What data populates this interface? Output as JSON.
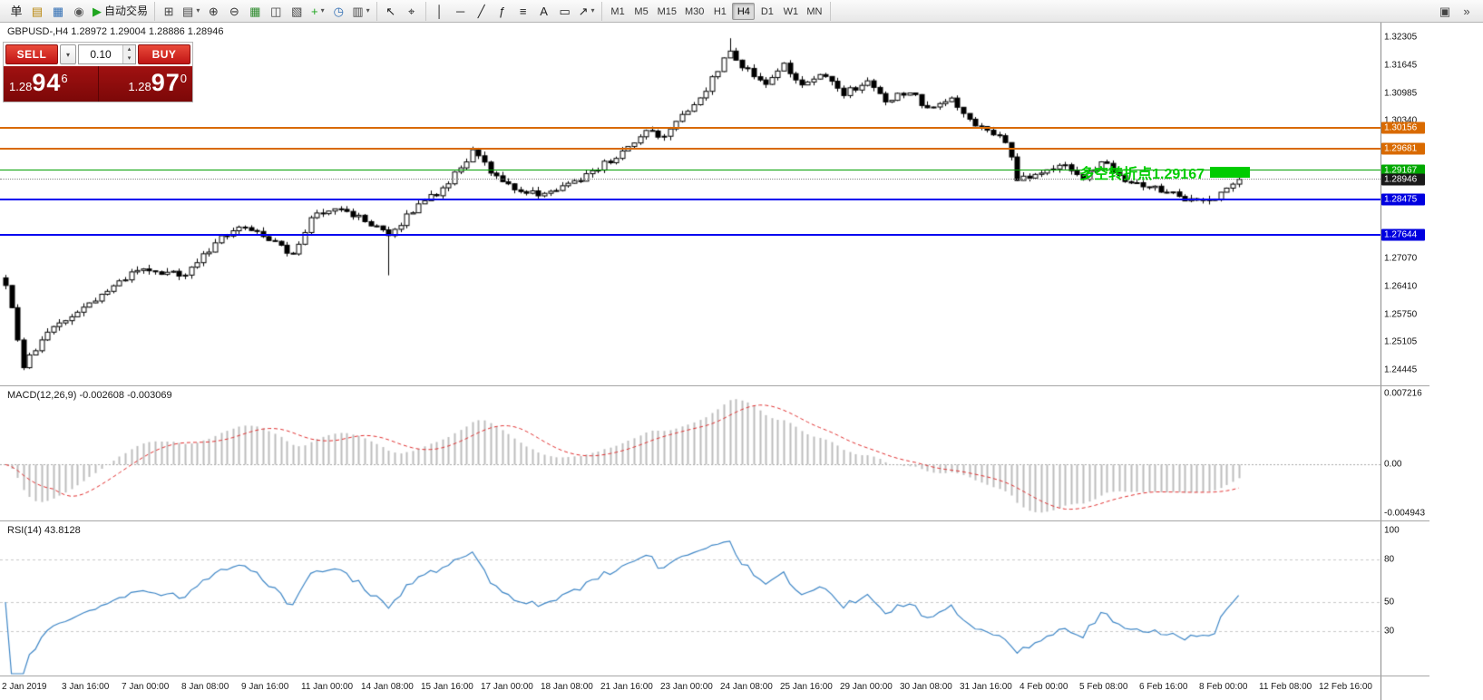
{
  "glyphs": {
    "caret_down": "▾",
    "spin_up": "▴",
    "spin_down": "▾"
  },
  "toolbar": {
    "groups": [
      {
        "name": "trade-group",
        "items": [
          {
            "name": "new-order-button",
            "glyph": "单",
            "color": "#1a1a1a"
          },
          {
            "name": "profiles-icon",
            "glyph": "▤",
            "color": "#B8860B"
          },
          {
            "name": "market-watch-icon",
            "glyph": "▦",
            "color": "#2F6DB3"
          },
          {
            "name": "navigator-icon",
            "glyph": "◉",
            "color": "#5A5A5A"
          },
          {
            "name": "autotrading-button",
            "glyph": "▶",
            "color": "#1FA51F",
            "label": "自动交易"
          }
        ]
      },
      {
        "name": "chart-group",
        "items": [
          {
            "name": "new-chart-icon",
            "glyph": "⊞",
            "color": "#444444"
          },
          {
            "name": "chart-list-icon",
            "glyph": "▤",
            "color": "#444444",
            "caret": true
          },
          {
            "name": "zoom-in-icon",
            "glyph": "⊕",
            "color": "#333333"
          },
          {
            "name": "zoom-out-icon",
            "glyph": "⊖",
            "color": "#333333"
          },
          {
            "name": "grid-icon",
            "glyph": "▦",
            "color": "#2E8B2E"
          },
          {
            "name": "tile-windows-icon",
            "glyph": "◫",
            "color": "#444444"
          },
          {
            "name": "cascade-windows-icon",
            "glyph": "▧",
            "color": "#444444"
          },
          {
            "name": "new-indicator-icon",
            "glyph": "+",
            "color": "#1FA51F",
            "caret": true
          },
          {
            "name": "period-clock-icon",
            "glyph": "◷",
            "color": "#2F6DB3"
          },
          {
            "name": "chart-properties-icon",
            "glyph": "▥",
            "color": "#444444",
            "caret": true
          }
        ]
      },
      {
        "name": "cursor-group",
        "items": [
          {
            "name": "cursor-icon",
            "glyph": "↖",
            "color": "#222222"
          },
          {
            "name": "crosshair-icon",
            "glyph": "⌖",
            "color": "#222222"
          }
        ]
      },
      {
        "name": "objects-group",
        "items": [
          {
            "name": "vertical-line-icon",
            "glyph": "│",
            "color": "#222222"
          },
          {
            "name": "horizontal-line-icon",
            "glyph": "─",
            "color": "#222222"
          },
          {
            "name": "trendline-icon",
            "glyph": "╱",
            "color": "#222222"
          },
          {
            "name": "fibonacci-icon",
            "glyph": "ƒ",
            "color": "#222222"
          },
          {
            "name": "channel-icon",
            "glyph": "≡",
            "color": "#222222"
          },
          {
            "name": "text-icon",
            "glyph": "A",
            "color": "#222222"
          },
          {
            "name": "text-label-icon",
            "glyph": "▭",
            "color": "#222222"
          },
          {
            "name": "arrows-icon",
            "glyph": "↗",
            "color": "#222222",
            "caret": true
          }
        ]
      }
    ],
    "timeframes": [
      "M1",
      "M5",
      "M15",
      "M30",
      "H1",
      "H4",
      "D1",
      "W1",
      "MN"
    ],
    "active_timeframe": "H4",
    "right_icons": [
      {
        "name": "window-layout-icon",
        "glyph": "▣",
        "color": "#444444"
      },
      {
        "name": "overflow-chevron-icon",
        "glyph": "»",
        "color": "#444444"
      }
    ]
  },
  "chart": {
    "title": "GBPUSD-,H4 1.28972 1.29004 1.28886 1.28946",
    "annotation_text": "多空转折点1.29167",
    "annotation_color": "#00CC00"
  },
  "trade_panel": {
    "sell_label": "SELL",
    "buy_label": "BUY",
    "lot": "0.10",
    "bid_prefix": "1.28",
    "bid_big": "94",
    "bid_sup": "6",
    "ask_prefix": "1.28",
    "ask_big": "97",
    "ask_sup": "0"
  },
  "price_axis": {
    "plain_labels": [
      {
        "text": "1.32305",
        "price": 1.32305
      },
      {
        "text": "1.31645",
        "price": 1.31645
      },
      {
        "text": "1.30985",
        "price": 1.30985
      },
      {
        "text": "1.30340",
        "price": 1.3034
      },
      {
        "text": "1.27070",
        "price": 1.2707
      },
      {
        "text": "1.26410",
        "price": 1.2641
      },
      {
        "text": "1.25750",
        "price": 1.2575
      },
      {
        "text": "1.25105",
        "price": 1.25105
      },
      {
        "text": "1.24445",
        "price": 1.24445
      }
    ],
    "levels": [
      {
        "text": "1.30156",
        "price": 1.30156,
        "style": "resistance",
        "line_color": "#D96A00",
        "label_bg": "#D96A00"
      },
      {
        "text": "1.29681",
        "price": 1.29681,
        "style": "resistance",
        "line_color": "#D96A00",
        "label_bg": "#D96A00"
      },
      {
        "text": "1.29167",
        "price": 1.29167,
        "style": "pivot",
        "line_color": "#00A000",
        "label_bg": "#00A800"
      },
      {
        "text": "1.28946",
        "price": 1.28946,
        "style": "current",
        "line_color": "#8c8c8c",
        "label_bg": "#1A1A1A"
      },
      {
        "text": "1.28475",
        "price": 1.28475,
        "style": "support",
        "line_color": "#0000F0",
        "label_bg": "#0000E0"
      },
      {
        "text": "1.27644",
        "price": 1.27644,
        "style": "support",
        "line_color": "#0000F0",
        "label_bg": "#0000E0"
      }
    ]
  },
  "indicators": {
    "macd_label": "MACD(12,26,9) -0.002608 -0.003069",
    "macd_scale": [
      {
        "text": "0.007216",
        "value": 0.007216
      },
      {
        "text": "0.00",
        "value": 0
      },
      {
        "text": "-0.004943",
        "value": -0.004943
      }
    ],
    "rsi_label": "RSI(14) 43.8128",
    "rsi_scale": [
      {
        "text": "100",
        "value": 100
      },
      {
        "text": "80",
        "value": 80
      },
      {
        "text": "50",
        "value": 50
      },
      {
        "text": "30",
        "value": 30
      }
    ],
    "rsi_levels": [
      80,
      50,
      30
    ]
  },
  "chart_data": {
    "type": "candlestick",
    "symbol": "GBPUSD-",
    "timeframe": "H4",
    "ohlc": {
      "open": 1.28972,
      "high": 1.29004,
      "low": 1.28886,
      "close": 1.28946
    },
    "bid": 1.28946,
    "ask": 1.2897,
    "y_range": [
      1.24445,
      1.32305
    ],
    "num_candles": 207,
    "last_close": 1.28946,
    "price_path": [
      [
        0,
        1.265
      ],
      [
        3,
        1.2455
      ],
      [
        8,
        1.2545
      ],
      [
        14,
        1.26
      ],
      [
        22,
        1.268
      ],
      [
        30,
        1.2668
      ],
      [
        35,
        1.2745
      ],
      [
        39,
        1.2788
      ],
      [
        45,
        1.2745
      ],
      [
        48,
        1.2712
      ],
      [
        51,
        1.2808
      ],
      [
        55,
        1.283
      ],
      [
        60,
        1.2798
      ],
      [
        64,
        1.276
      ],
      [
        69,
        1.2838
      ],
      [
        73,
        1.287
      ],
      [
        78,
        1.2958
      ],
      [
        82,
        1.29
      ],
      [
        86,
        1.2868
      ],
      [
        90,
        1.2858
      ],
      [
        95,
        1.2888
      ],
      [
        99,
        1.2922
      ],
      [
        104,
        1.2968
      ],
      [
        107,
        1.3008
      ],
      [
        110,
        1.2995
      ],
      [
        114,
        1.3058
      ],
      [
        117,
        1.3108
      ],
      [
        121,
        1.3198
      ],
      [
        123,
        1.316
      ],
      [
        127,
        1.3122
      ],
      [
        130,
        1.3168
      ],
      [
        133,
        1.3112
      ],
      [
        136,
        1.3142
      ],
      [
        140,
        1.3098
      ],
      [
        144,
        1.3126
      ],
      [
        147,
        1.3078
      ],
      [
        151,
        1.3104
      ],
      [
        154,
        1.3058
      ],
      [
        158,
        1.3082
      ],
      [
        161,
        1.3035
      ],
      [
        164,
        1.3008
      ],
      [
        167,
        1.2988
      ],
      [
        169,
        1.2898
      ],
      [
        173,
        1.2905
      ],
      [
        177,
        1.2932
      ],
      [
        180,
        1.2896
      ],
      [
        183,
        1.2938
      ],
      [
        187,
        1.2896
      ],
      [
        191,
        1.288
      ],
      [
        195,
        1.286
      ],
      [
        198,
        1.2844
      ],
      [
        202,
        1.2852
      ],
      [
        204,
        1.2872
      ],
      [
        206,
        1.28946
      ]
    ],
    "wick_overrides": [
      [
        3,
        "low",
        1.2444
      ],
      [
        64,
        "low",
        1.2668
      ],
      [
        78,
        "high",
        1.2972
      ],
      [
        121,
        "high",
        1.3228
      ]
    ],
    "horizontal_levels": [
      1.30156,
      1.29681,
      1.29167,
      1.28946,
      1.28475,
      1.27644
    ],
    "time_labels": [
      "2 Jan 2019",
      "3 Jan 16:00",
      "7 Jan 00:00",
      "8 Jan 08:00",
      "9 Jan 16:00",
      "11 Jan 00:00",
      "14 Jan 08:00",
      "15 Jan 16:00",
      "17 Jan 00:00",
      "18 Jan 08:00",
      "21 Jan 16:00",
      "23 Jan 00:00",
      "24 Jan 08:00",
      "25 Jan 16:00",
      "29 Jan 00:00",
      "30 Jan 08:00",
      "31 Jan 16:00",
      "4 Feb 00:00",
      "5 Feb 08:00",
      "6 Feb 16:00",
      "8 Feb 00:00",
      "11 Feb 08:00",
      "12 Feb 16:00"
    ],
    "indicators": [
      {
        "name": "MACD",
        "params": [
          12,
          26,
          9
        ],
        "current_values": [
          -0.002608,
          -0.003069
        ],
        "scale": [
          0.007216,
          0,
          -0.004943
        ]
      },
      {
        "name": "RSI",
        "params": [
          14
        ],
        "current_value": 43.8128,
        "scale": [
          100,
          80,
          50,
          30
        ]
      }
    ]
  },
  "colors": {
    "bull_body": "#FFFFFF",
    "bear_body": "#000000",
    "candle_outline": "#000000",
    "macd_histogram": "#BDBDBD",
    "macd_signal": "#E03030",
    "rsi_line": "#3E86C6",
    "level_dash": "#C8C8C8"
  }
}
